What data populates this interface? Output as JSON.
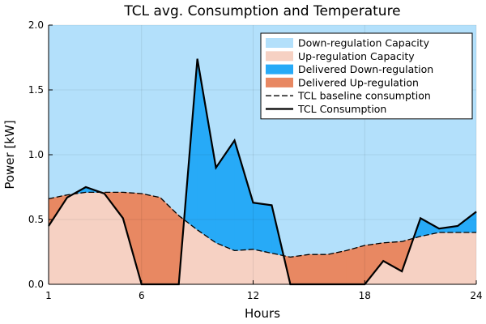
{
  "chart_data": {
    "type": "area",
    "title": "TCL avg. Consumption and Temperature",
    "xlabel": "Hours",
    "ylabel": "Power [kW]",
    "xlim": [
      1,
      24
    ],
    "ylim": [
      0,
      2.0
    ],
    "xticks": [
      1,
      6,
      12,
      18,
      24
    ],
    "xtick_labels": [
      "1",
      "6",
      "12",
      "18",
      "24"
    ],
    "yticks": [
      0,
      0.5,
      1.0,
      1.5,
      2.0
    ],
    "ytick_labels": [
      "0.0",
      "0.5",
      "1.0",
      "1.5",
      "2.0"
    ],
    "grid": true,
    "legend_position": "top-right",
    "x": [
      1,
      2,
      3,
      4,
      5,
      6,
      7,
      8,
      9,
      10,
      11,
      12,
      13,
      14,
      15,
      16,
      17,
      18,
      19,
      20,
      21,
      22,
      23,
      24
    ],
    "series": [
      {
        "name": "Down-regulation Capacity",
        "kind": "fill",
        "color": "#b3e0fb",
        "lower_series": "TCL baseline consumption",
        "upper_constant": 2.0
      },
      {
        "name": "Up-regulation Capacity",
        "kind": "fill",
        "color": "#f6d1c3",
        "lower_constant": 0,
        "upper_series": "TCL baseline consumption"
      },
      {
        "name": "Delivered Down-regulation",
        "kind": "fill",
        "color": "#27aaf7",
        "between": [
          "TCL baseline consumption",
          "TCL Consumption"
        ],
        "when": "consumption_above_baseline"
      },
      {
        "name": "Delivered Up-regulation",
        "kind": "fill",
        "color": "#e88862",
        "between": [
          "TCL Consumption",
          "TCL baseline consumption"
        ],
        "when": "consumption_below_baseline"
      },
      {
        "name": "TCL baseline consumption",
        "kind": "line",
        "style": "dashed",
        "color": "#000000",
        "values": [
          0.66,
          0.69,
          0.71,
          0.71,
          0.71,
          0.7,
          0.67,
          0.53,
          0.42,
          0.32,
          0.26,
          0.27,
          0.24,
          0.21,
          0.23,
          0.23,
          0.26,
          0.3,
          0.32,
          0.33,
          0.37,
          0.4,
          0.4,
          0.4
        ]
      },
      {
        "name": "TCL Consumption",
        "kind": "line",
        "style": "solid",
        "color": "#000000",
        "values": [
          0.45,
          0.67,
          0.75,
          0.7,
          0.51,
          0.0,
          0.0,
          0.0,
          1.74,
          0.9,
          1.11,
          0.63,
          0.61,
          0.0,
          0.0,
          0.0,
          0.0,
          0.0,
          0.18,
          0.1,
          0.51,
          0.43,
          0.45,
          0.56
        ]
      }
    ]
  }
}
